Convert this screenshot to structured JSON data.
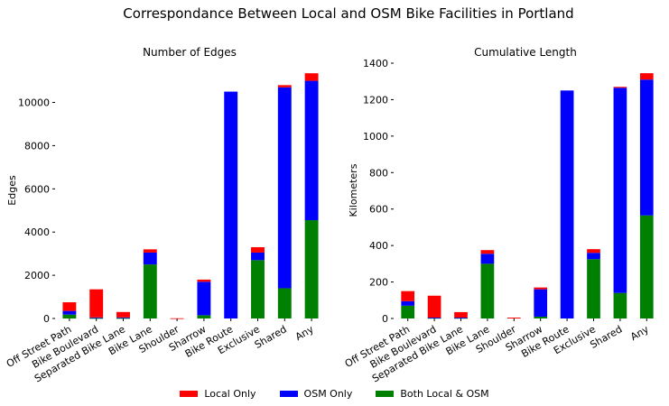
{
  "figure": {
    "title": "Correspondance Between Local and OSM Bike Facilities in Portland"
  },
  "legend": {
    "placement": "bottom-center",
    "entries": [
      {
        "name": "Local Only",
        "color": "#ff0000"
      },
      {
        "name": "OSM Only",
        "color": "#0000ff"
      },
      {
        "name": "Both Local & OSM",
        "color": "#008000"
      }
    ]
  },
  "chart_data": [
    {
      "type": "bar",
      "stacked": true,
      "title": "Number of Edges",
      "xlabel": "",
      "ylabel": "Edges",
      "ylim": [
        0,
        11400
      ],
      "yticks": [
        0,
        2000,
        4000,
        6000,
        8000,
        10000
      ],
      "ytick_labels": [
        "0",
        "2000",
        "4000",
        "6000",
        "8000",
        "10000"
      ],
      "categories": [
        "Off Street Path",
        "Bike Boulevard",
        "Separated Bike Lane",
        "Bike Lane",
        "Shoulder",
        "Sharrow",
        "Bike Route",
        "Exclusive",
        "Shared",
        "Any"
      ],
      "series": [
        {
          "name": "Both Local & OSM",
          "color": "#008000",
          "values": [
            180,
            20,
            20,
            2500,
            0,
            150,
            0,
            2700,
            1400,
            4550
          ]
        },
        {
          "name": "OSM Only",
          "color": "#0000ff",
          "values": [
            170,
            30,
            30,
            550,
            0,
            1550,
            10500,
            350,
            9300,
            6450
          ]
        },
        {
          "name": "Local Only",
          "color": "#ff0000",
          "values": [
            400,
            1300,
            250,
            150,
            10,
            100,
            0,
            250,
            100,
            350
          ]
        }
      ],
      "grid": false
    },
    {
      "type": "bar",
      "stacked": true,
      "title": "Cumulative Length",
      "xlabel": "",
      "ylabel": "Kilometers",
      "ylim": [
        0,
        1400
      ],
      "yticks": [
        0,
        200,
        400,
        600,
        800,
        1000,
        1200,
        1400
      ],
      "ytick_labels": [
        "0",
        "200",
        "400",
        "600",
        "800",
        "1000",
        "1200",
        "1400"
      ],
      "categories": [
        "Off Street Path",
        "Bike Boulevard",
        "Separated Bike Lane",
        "Bike Lane",
        "Shoulder",
        "Sharrow",
        "Bike Route",
        "Exclusive",
        "Shared",
        "Any"
      ],
      "series": [
        {
          "name": "Both Local & OSM",
          "color": "#008000",
          "values": [
            70,
            3,
            3,
            300,
            0,
            10,
            0,
            325,
            140,
            565
          ]
        },
        {
          "name": "OSM Only",
          "color": "#0000ff",
          "values": [
            25,
            2,
            2,
            55,
            0,
            150,
            1250,
            35,
            1125,
            745
          ]
        },
        {
          "name": "Local Only",
          "color": "#ff0000",
          "values": [
            55,
            120,
            30,
            20,
            5,
            10,
            0,
            20,
            5,
            35
          ]
        }
      ],
      "grid": false
    }
  ]
}
